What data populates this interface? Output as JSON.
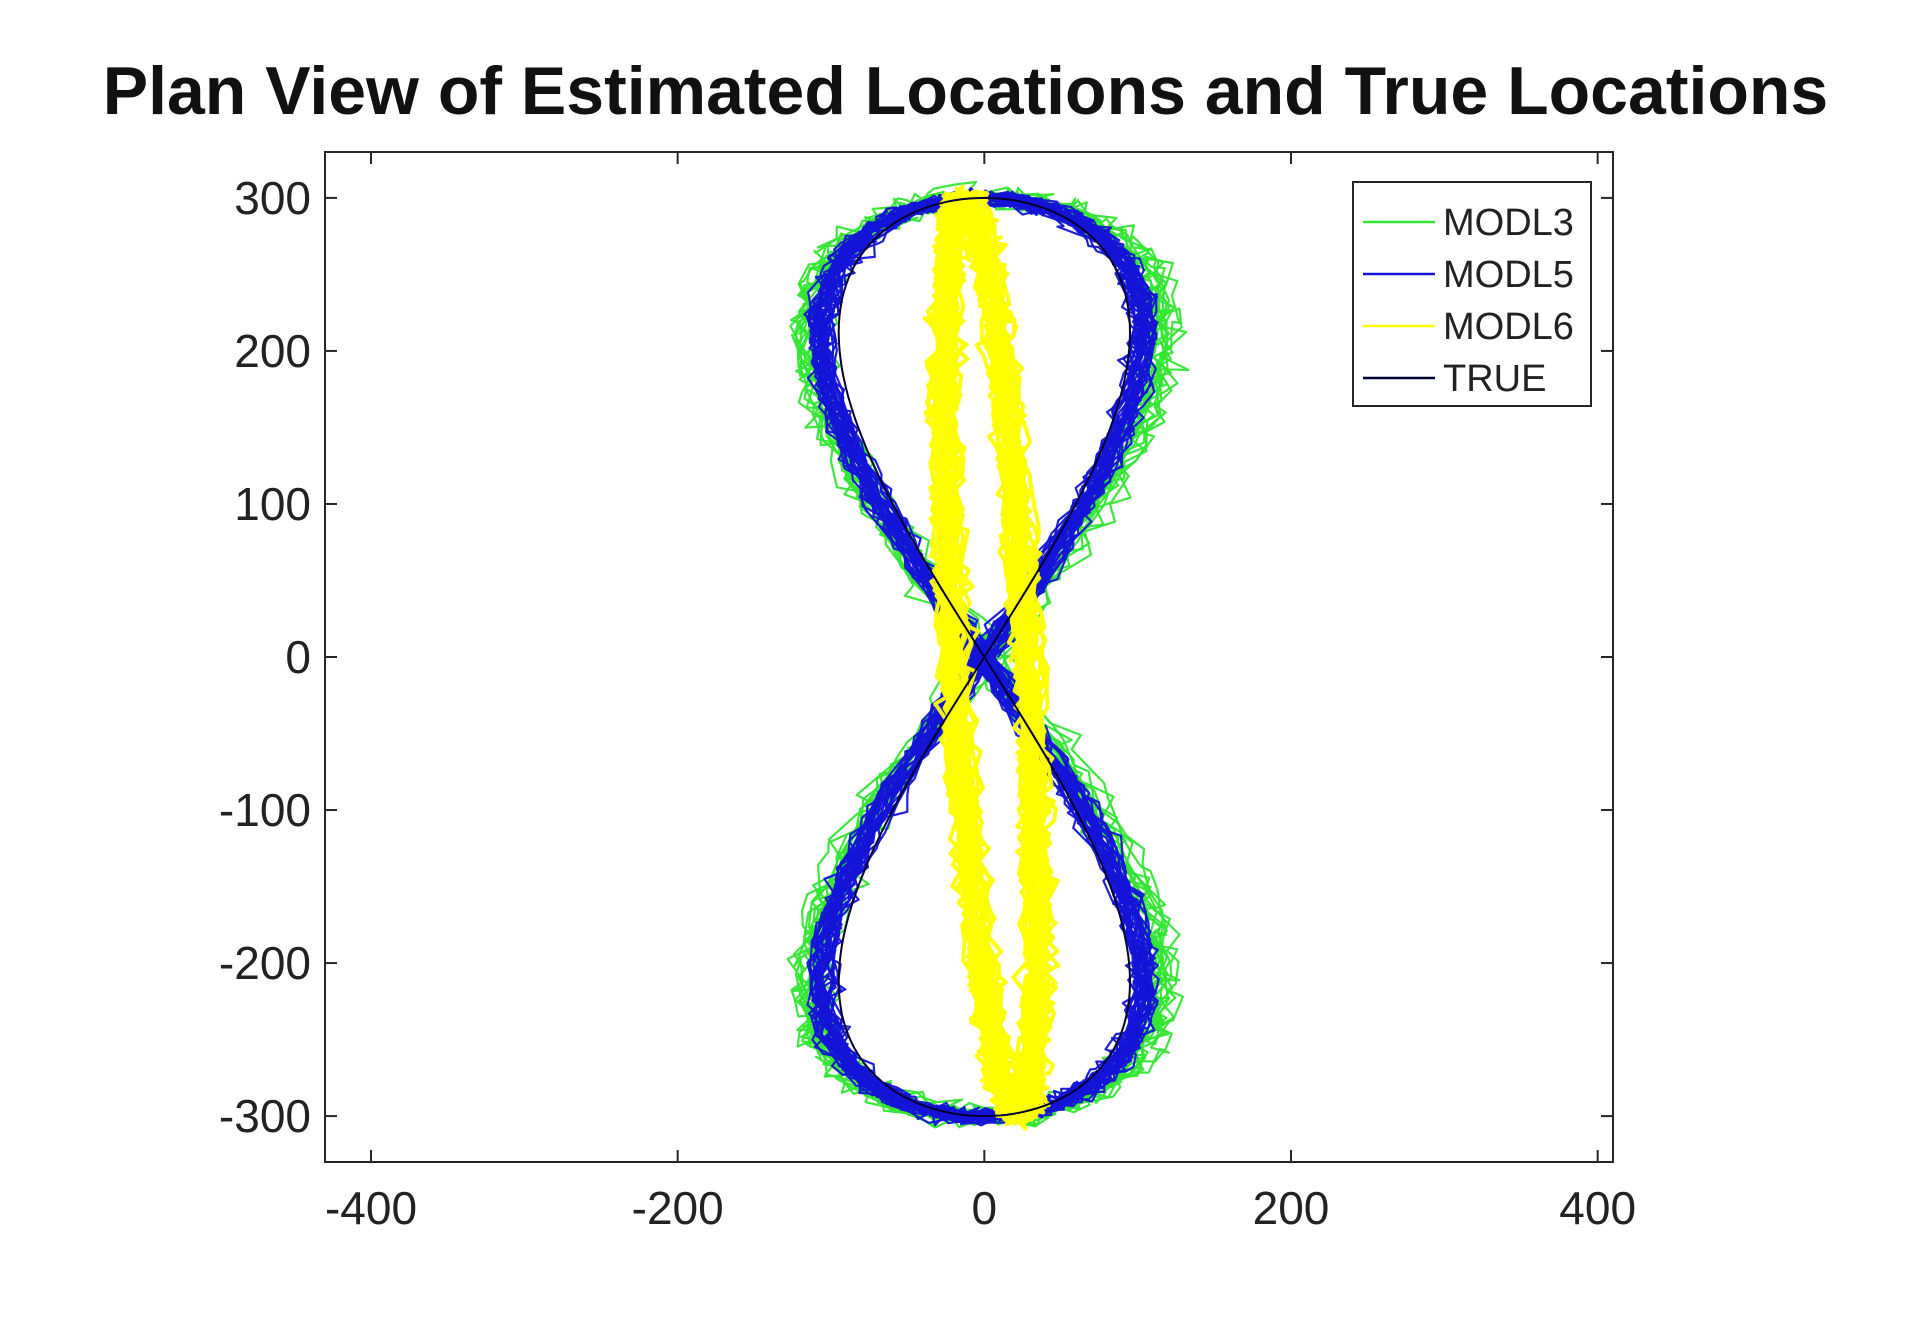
{
  "chart_data": {
    "type": "line",
    "title": "Plan View of Estimated Locations and True Locations",
    "xlabel": "",
    "ylabel": "",
    "xlim": [
      -430,
      410
    ],
    "ylim": [
      -330,
      330
    ],
    "xticks": [
      -400,
      -200,
      0,
      200,
      400
    ],
    "yticks": [
      300,
      200,
      100,
      0,
      -100,
      -200,
      -300
    ],
    "grid": false,
    "legend_position": "top-right",
    "series": [
      {
        "name": "MODL3",
        "color": "#33e633",
        "shape": "figure-eight",
        "center_x": 0,
        "half_width": 115,
        "half_height": 300,
        "noise": 14,
        "trajectories": 14
      },
      {
        "name": "MODL5",
        "color": "#1414d8",
        "shape": "figure-eight",
        "center_x": 0,
        "half_width": 105,
        "half_height": 300,
        "noise": 9,
        "trajectories": 30
      },
      {
        "name": "MODL6",
        "color": "#ffff00",
        "shape": "sheared-ellipse",
        "center_x": 0,
        "half_width": 24,
        "half_height": 300,
        "noise": 10,
        "trajectories": 30
      },
      {
        "name": "TRUE",
        "color": "#000033",
        "shape": "figure-eight",
        "center_x": 0,
        "half_width": 95,
        "half_height": 300,
        "noise": 0,
        "trajectories": 1
      }
    ]
  }
}
